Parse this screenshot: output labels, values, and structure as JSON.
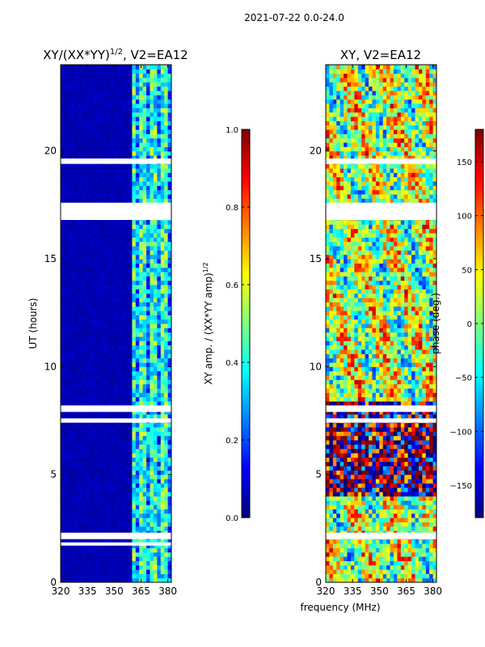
{
  "suptitle": "2021-07-22 0.0-24.0",
  "shared_xlabel": "frequency (MHz)",
  "colors": {
    "stripe": "#ffffff",
    "axis": "#000000",
    "jet": [
      "#00007f",
      "#0000ff",
      "#007fff",
      "#00ffff",
      "#7fff7f",
      "#ffff00",
      "#ff7f00",
      "#ff0000",
      "#7f0000"
    ]
  },
  "chart_data": [
    {
      "type": "heatmap",
      "title": "XY/(XX*YY)",
      "title_sup": "1/2",
      "title_suffix": ", V2=EA12",
      "xlabel": "",
      "ylabel": "UT (hours)",
      "xlim": [
        320,
        382
      ],
      "ylim": [
        0,
        24
      ],
      "xticks": [
        "320",
        "335",
        "350",
        "365",
        "380"
      ],
      "xtick_values": [
        320,
        335,
        350,
        365,
        380
      ],
      "yticks": [
        "0",
        "5",
        "10",
        "15",
        "20"
      ],
      "ytick_values": [
        0,
        5,
        10,
        15,
        20
      ],
      "grid": false,
      "description_values": "normalized amplitude mostly ~0.0-0.1 below 360 MHz, bands ~0.3-0.5 between 360 and 382 MHz",
      "low_band_value": 0.03,
      "high_band_value": 0.4,
      "band_edge_mhz": 360,
      "empty_rows_hours": [
        [
          16.8,
          17.6
        ],
        [
          19.4,
          19.65
        ],
        [
          1.7,
          1.85
        ],
        [
          2.0,
          2.3
        ],
        [
          7.4,
          7.6
        ],
        [
          7.9,
          8.2
        ]
      ],
      "colorbar": {
        "label": "XY amp. / (XX*YY amp)",
        "label_sup": "1/2",
        "range": [
          0,
          1
        ],
        "ticks": [
          "0.0",
          "0.2",
          "0.4",
          "0.6",
          "0.8",
          "1.0"
        ],
        "tick_values": [
          0,
          0.2,
          0.4,
          0.6,
          0.8,
          1.0
        ]
      }
    },
    {
      "type": "heatmap",
      "title": "XY, V2=EA12",
      "xlabel": "",
      "ylabel": "",
      "xlim": [
        320,
        382
      ],
      "ylim": [
        0,
        24
      ],
      "xticks": [
        "320",
        "335",
        "350",
        "365",
        "380"
      ],
      "xtick_values": [
        320,
        335,
        350,
        365,
        380
      ],
      "yticks": [
        "0",
        "5",
        "10",
        "15",
        "20"
      ],
      "ytick_values": [
        0,
        5,
        10,
        15,
        20
      ],
      "grid": false,
      "description_values": "phase spread across full range, mostly near 0 to 100 deg above 9 h, near -150 to 180 deg between 4 and 8 h",
      "empty_rows_hours": [
        [
          16.8,
          17.6
        ],
        [
          19.4,
          19.65
        ],
        [
          2.0,
          2.3
        ],
        [
          7.4,
          7.6
        ],
        [
          7.9,
          8.2
        ]
      ],
      "colorbar": {
        "label": "phase (deg.)",
        "range": [
          -180,
          180
        ],
        "ticks": [
          "−150",
          "−100",
          "−50",
          "0",
          "50",
          "100",
          "150"
        ],
        "tick_values": [
          -150,
          -100,
          -50,
          0,
          50,
          100,
          150
        ]
      }
    }
  ]
}
